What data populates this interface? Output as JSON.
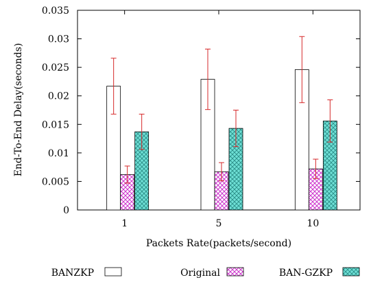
{
  "chart_data": {
    "type": "bar",
    "xlabel": "Packets Rate(packets/second)",
    "ylabel": "End-To-End Delay(seconds)",
    "categories": [
      "1",
      "5",
      "10"
    ],
    "ylim": [
      0,
      0.035
    ],
    "yticks": [
      "0",
      "0.005",
      "0.01",
      "0.015",
      "0.02",
      "0.025",
      "0.03",
      "0.035"
    ],
    "grid": false,
    "legend_position": "bottom",
    "series": [
      {
        "name": "BANZKP",
        "values": [
          0.0217,
          0.0229,
          0.0246
        ],
        "errors": [
          0.0049,
          0.0053,
          0.0058
        ],
        "pattern": "white"
      },
      {
        "name": "Original",
        "values": [
          0.0062,
          0.0067,
          0.0072
        ],
        "errors": [
          0.0015,
          0.0016,
          0.0017
        ],
        "pattern": "crosshatch-magenta"
      },
      {
        "name": "BAN-GZKP",
        "values": [
          0.0137,
          0.0143,
          0.0156
        ],
        "errors": [
          0.0031,
          0.0032,
          0.0037
        ],
        "pattern": "crosshatch-cyan"
      }
    ],
    "colors": {
      "error_bar": "#d62728",
      "original_pattern": "#cc33cc",
      "ban_gzkp_fill": "#6fe0d6",
      "ban_gzkp_hatch": "#2a8c86",
      "outline": "#000000"
    }
  }
}
